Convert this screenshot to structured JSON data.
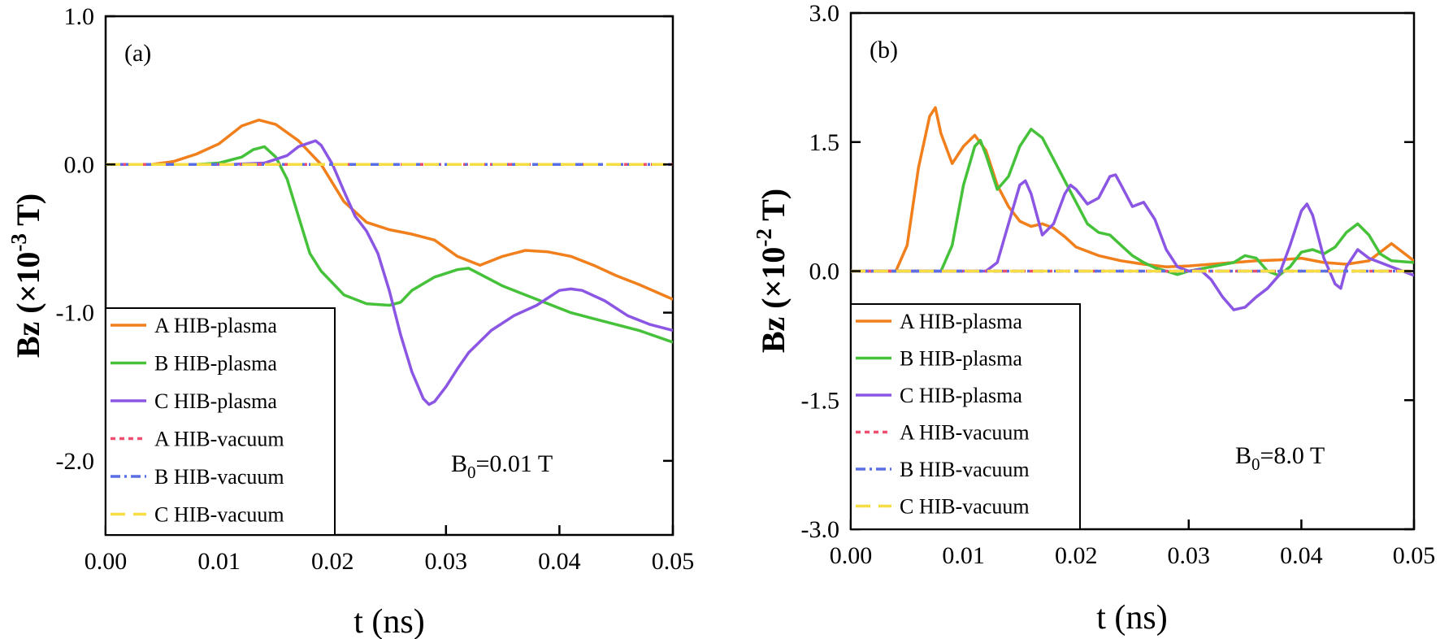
{
  "chart_data": [
    {
      "panel": "(a)",
      "type": "line",
      "xlabel": "t (ns)",
      "ylabel_main": "Bz (×10",
      "ylabel_exp": "-3",
      "ylabel_unit": " T)",
      "xlim": [
        0,
        0.05
      ],
      "ylim": [
        -2.5,
        1.0
      ],
      "x_ticks": [
        0,
        0.01,
        0.02,
        0.03,
        0.04,
        0.05
      ],
      "x_tick_labels": [
        "0.00",
        "0.01",
        "0.02",
        "0.03",
        "0.04",
        "0.05"
      ],
      "y_ticks": [
        1.0,
        0.0,
        -1.0,
        -2.0
      ],
      "y_tick_labels": [
        "1.0",
        "0.0",
        "-1.0",
        "-2.0"
      ],
      "annotation_main": "B",
      "annotation_sub": "0",
      "annotation_rest": "=0.01 T",
      "legend_position": "bottom-left",
      "series": [
        {
          "name": "A HIB-plasma",
          "color": "#f07f1c",
          "dash": "solid",
          "x": [
            0,
            0.004,
            0.006,
            0.008,
            0.01,
            0.012,
            0.0135,
            0.015,
            0.017,
            0.019,
            0.021,
            0.023,
            0.025,
            0.027,
            0.029,
            0.031,
            0.033,
            0.035,
            0.037,
            0.039,
            0.041,
            0.043,
            0.045,
            0.047,
            0.05
          ],
          "y": [
            0,
            0,
            0.02,
            0.07,
            0.14,
            0.26,
            0.3,
            0.27,
            0.16,
            0.0,
            -0.25,
            -0.39,
            -0.44,
            -0.47,
            -0.51,
            -0.62,
            -0.68,
            -0.62,
            -0.58,
            -0.59,
            -0.62,
            -0.68,
            -0.75,
            -0.81,
            -0.91
          ]
        },
        {
          "name": "B HIB-plasma",
          "color": "#45c23a",
          "dash": "solid",
          "x": [
            0,
            0.008,
            0.01,
            0.012,
            0.013,
            0.014,
            0.015,
            0.016,
            0.017,
            0.018,
            0.019,
            0.021,
            0.023,
            0.025,
            0.026,
            0.027,
            0.029,
            0.031,
            0.032,
            0.033,
            0.035,
            0.037,
            0.039,
            0.041,
            0.043,
            0.045,
            0.047,
            0.05
          ],
          "y": [
            0,
            0,
            0.01,
            0.05,
            0.1,
            0.12,
            0.05,
            -0.1,
            -0.35,
            -0.6,
            -0.72,
            -0.88,
            -0.94,
            -0.95,
            -0.93,
            -0.85,
            -0.76,
            -0.71,
            -0.7,
            -0.74,
            -0.82,
            -0.88,
            -0.94,
            -1.0,
            -1.04,
            -1.08,
            -1.12,
            -1.2
          ]
        },
        {
          "name": "C HIB-plasma",
          "color": "#8b56e3",
          "dash": "solid",
          "x": [
            0,
            0.011,
            0.014,
            0.016,
            0.017,
            0.0185,
            0.019,
            0.02,
            0.021,
            0.022,
            0.023,
            0.024,
            0.025,
            0.026,
            0.027,
            0.028,
            0.0285,
            0.029,
            0.03,
            0.031,
            0.032,
            0.034,
            0.036,
            0.038,
            0.04,
            0.041,
            0.042,
            0.044,
            0.046,
            0.048,
            0.05
          ],
          "y": [
            0,
            0,
            0.01,
            0.06,
            0.12,
            0.16,
            0.13,
            0.0,
            -0.18,
            -0.35,
            -0.45,
            -0.6,
            -0.85,
            -1.15,
            -1.4,
            -1.58,
            -1.62,
            -1.6,
            -1.5,
            -1.38,
            -1.27,
            -1.12,
            -1.02,
            -0.95,
            -0.85,
            -0.84,
            -0.85,
            -0.92,
            -1.02,
            -1.08,
            -1.12
          ]
        },
        {
          "name": "A HIB-vacuum",
          "color": "#ef4f6e",
          "dash": "short-dash",
          "x": [
            0,
            0.05
          ],
          "y": [
            0,
            0
          ]
        },
        {
          "name": "B HIB-vacuum",
          "color": "#5b6fe5",
          "dash": "dash-dot",
          "x": [
            0,
            0.05
          ],
          "y": [
            0,
            0
          ]
        },
        {
          "name": "C HIB-vacuum",
          "color": "#f5dd43",
          "dash": "long-dash",
          "x": [
            0,
            0.05
          ],
          "y": [
            0,
            0
          ]
        }
      ]
    },
    {
      "panel": "(b)",
      "type": "line",
      "xlabel": "t (ns)",
      "ylabel_main": "Bz (×10",
      "ylabel_exp": "-2",
      "ylabel_unit": " T)",
      "xlim": [
        0,
        0.05
      ],
      "ylim": [
        -3.0,
        3.0
      ],
      "x_ticks": [
        0,
        0.01,
        0.02,
        0.03,
        0.04,
        0.05
      ],
      "x_tick_labels": [
        "0.00",
        "0.01",
        "0.02",
        "0.03",
        "0.04",
        "0.05"
      ],
      "y_ticks": [
        3.0,
        1.5,
        0.0,
        -1.5,
        -3.0
      ],
      "y_tick_labels": [
        "3.0",
        "1.5",
        "0.0",
        "-1.5",
        "-3.0"
      ],
      "annotation_main": "B",
      "annotation_sub": "0",
      "annotation_rest": "=8.0 T",
      "legend_position": "bottom-left",
      "series": [
        {
          "name": "A HIB-plasma",
          "color": "#f07f1c",
          "dash": "solid",
          "x": [
            0,
            0.004,
            0.005,
            0.006,
            0.007,
            0.0075,
            0.008,
            0.009,
            0.01,
            0.011,
            0.012,
            0.013,
            0.014,
            0.015,
            0.016,
            0.017,
            0.018,
            0.019,
            0.02,
            0.022,
            0.024,
            0.026,
            0.028,
            0.03,
            0.032,
            0.034,
            0.036,
            0.038,
            0.04,
            0.042,
            0.044,
            0.046,
            0.048,
            0.05
          ],
          "y": [
            0,
            0,
            0.3,
            1.2,
            1.8,
            1.9,
            1.6,
            1.25,
            1.45,
            1.58,
            1.4,
            1.0,
            0.75,
            0.58,
            0.52,
            0.55,
            0.5,
            0.4,
            0.28,
            0.18,
            0.12,
            0.08,
            0.05,
            0.06,
            0.08,
            0.1,
            0.12,
            0.13,
            0.15,
            0.1,
            0.08,
            0.12,
            0.32,
            0.12
          ]
        },
        {
          "name": "B HIB-plasma",
          "color": "#45c23a",
          "dash": "solid",
          "x": [
            0,
            0.008,
            0.009,
            0.01,
            0.011,
            0.0115,
            0.012,
            0.013,
            0.014,
            0.015,
            0.016,
            0.017,
            0.018,
            0.019,
            0.02,
            0.021,
            0.022,
            0.023,
            0.024,
            0.025,
            0.026,
            0.027,
            0.028,
            0.029,
            0.03,
            0.032,
            0.034,
            0.035,
            0.036,
            0.037,
            0.038,
            0.039,
            0.04,
            0.041,
            0.042,
            0.043,
            0.044,
            0.045,
            0.046,
            0.047,
            0.048,
            0.05
          ],
          "y": [
            0,
            0,
            0.3,
            1.0,
            1.45,
            1.52,
            1.35,
            0.95,
            1.1,
            1.45,
            1.65,
            1.55,
            1.3,
            1.05,
            0.8,
            0.55,
            0.45,
            0.42,
            0.3,
            0.18,
            0.1,
            0.04,
            0.0,
            -0.04,
            0.0,
            0.05,
            0.1,
            0.18,
            0.15,
            0.0,
            -0.05,
            0.05,
            0.22,
            0.25,
            0.2,
            0.28,
            0.45,
            0.55,
            0.42,
            0.2,
            0.12,
            0.1
          ]
        },
        {
          "name": "C HIB-plasma",
          "color": "#8b56e3",
          "dash": "solid",
          "x": [
            0,
            0.012,
            0.013,
            0.014,
            0.015,
            0.0155,
            0.016,
            0.017,
            0.018,
            0.019,
            0.0195,
            0.02,
            0.021,
            0.022,
            0.023,
            0.0235,
            0.024,
            0.025,
            0.026,
            0.027,
            0.028,
            0.029,
            0.03,
            0.031,
            0.032,
            0.033,
            0.034,
            0.035,
            0.036,
            0.037,
            0.038,
            0.039,
            0.04,
            0.0405,
            0.041,
            0.042,
            0.043,
            0.0435,
            0.044,
            0.045,
            0.046,
            0.047,
            0.048,
            0.049,
            0.05
          ],
          "y": [
            0,
            0,
            0.1,
            0.55,
            1.0,
            1.05,
            0.9,
            0.42,
            0.55,
            0.9,
            1.0,
            0.95,
            0.78,
            0.85,
            1.1,
            1.12,
            1.0,
            0.75,
            0.8,
            0.6,
            0.25,
            0.05,
            0.0,
            0.02,
            -0.1,
            -0.3,
            -0.45,
            -0.42,
            -0.3,
            -0.2,
            -0.05,
            0.3,
            0.7,
            0.78,
            0.65,
            0.15,
            -0.15,
            -0.2,
            0.05,
            0.25,
            0.15,
            0.1,
            0.05,
            0.0,
            -0.05
          ]
        },
        {
          "name": "A HIB-vacuum",
          "color": "#ef4f6e",
          "dash": "short-dash",
          "x": [
            0,
            0.05
          ],
          "y": [
            0,
            0
          ]
        },
        {
          "name": "B HIB-vacuum",
          "color": "#5b6fe5",
          "dash": "dash-dot",
          "x": [
            0,
            0.05
          ],
          "y": [
            0,
            0
          ]
        },
        {
          "name": "C HIB-vacuum",
          "color": "#f5dd43",
          "dash": "long-dash",
          "x": [
            0,
            0.05
          ],
          "y": [
            0,
            0
          ]
        }
      ]
    }
  ]
}
